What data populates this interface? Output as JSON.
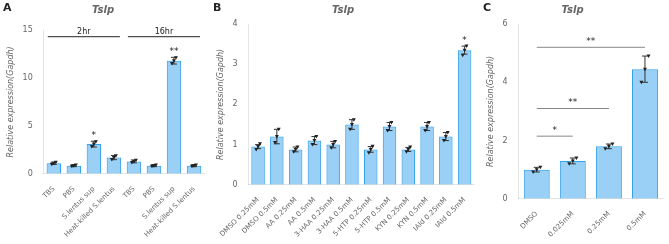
{
  "chart_data": [
    {
      "type": "bar",
      "title": "Tslp",
      "panel_label": "A",
      "categories": [
        "TBS",
        "PBS",
        "S.lentus sup",
        "Heat-killed S.lentus",
        "TBS",
        "PBS",
        "S.lentus sup",
        "Heat-killed S.lentus"
      ],
      "values": [
        1.1,
        0.85,
        3.1,
        1.7,
        1.3,
        0.85,
        11.8,
        0.85
      ],
      "errors": [
        0.12,
        0.1,
        0.3,
        0.22,
        0.15,
        0.1,
        0.35,
        0.1
      ],
      "dots": [
        [
          1.0,
          1.1,
          1.2
        ],
        [
          0.78,
          0.85,
          0.92
        ],
        [
          2.85,
          3.1,
          3.35
        ],
        [
          1.5,
          1.7,
          1.9
        ],
        [
          1.18,
          1.3,
          1.42
        ],
        [
          0.78,
          0.85,
          0.92
        ],
        [
          11.5,
          11.8,
          12.1
        ],
        [
          0.78,
          0.85,
          0.92
        ]
      ],
      "ylim": [
        0,
        15
      ],
      "yticks": [
        0,
        5,
        10,
        15
      ],
      "ylabel": "Relative expression(Gapdh)",
      "sig_labels": [
        null,
        null,
        "*",
        null,
        null,
        null,
        "**",
        null
      ],
      "groups": [
        {
          "label": "2hr",
          "start": 0,
          "end": 3,
          "y": 14.3
        },
        {
          "label": "16hr",
          "start": 4,
          "end": 7,
          "y": 14.3
        }
      ],
      "grid": false
    },
    {
      "type": "bar",
      "title": "Tslp",
      "panel_label": "B",
      "categories": [
        "DMSO 0.25mM",
        "DMSO 0.5mM",
        "AA 0.25mM",
        "AA 0.5mM",
        "3-HAA 0.25mM",
        "3-HAA 0.5mM",
        "5-HTP 0.25mM",
        "5-HTP 0.5mM",
        "KYN 0.25mM",
        "KYN 0.5mM",
        "IAId 0.25mM",
        "IAId 0.5mM"
      ],
      "values": [
        0.95,
        1.2,
        0.88,
        1.1,
        1.0,
        1.5,
        0.88,
        1.45,
        0.88,
        1.45,
        1.2,
        3.35
      ],
      "errors": [
        0.05,
        0.18,
        0.06,
        0.1,
        0.08,
        0.12,
        0.07,
        0.1,
        0.05,
        0.1,
        0.1,
        0.1
      ],
      "dots": [
        [
          0.88,
          0.95,
          1.02
        ],
        [
          1.05,
          1.2,
          1.38
        ],
        [
          0.82,
          0.88,
          0.94
        ],
        [
          1.0,
          1.1,
          1.2
        ],
        [
          0.92,
          1.0,
          1.08
        ],
        [
          1.38,
          1.5,
          1.62
        ],
        [
          0.8,
          0.88,
          0.96
        ],
        [
          1.35,
          1.45,
          1.55
        ],
        [
          0.82,
          0.88,
          0.94
        ],
        [
          1.35,
          1.45,
          1.55
        ],
        [
          1.1,
          1.2,
          1.3
        ],
        [
          3.22,
          3.35,
          3.45
        ]
      ],
      "ylim": [
        0,
        4
      ],
      "yticks": [
        0,
        1,
        2,
        3,
        4
      ],
      "ylabel": "Relative expression(Gapdh)",
      "sig_labels": [
        null,
        null,
        null,
        null,
        null,
        null,
        null,
        null,
        null,
        null,
        null,
        "*"
      ],
      "grid": false
    },
    {
      "type": "bar",
      "title": "Tslp",
      "panel_label": "C",
      "categories": [
        "DMSO",
        "0.025mM",
        "0.25mM",
        "0.5mM"
      ],
      "values": [
        1.0,
        1.3,
        1.8,
        4.45
      ],
      "errors": [
        0.08,
        0.1,
        0.08,
        0.45
      ],
      "dots": [
        [
          0.92,
          1.0,
          1.08
        ],
        [
          1.2,
          1.3,
          1.4
        ],
        [
          1.72,
          1.8,
          1.88
        ],
        [
          4.0,
          4.45,
          4.9
        ]
      ],
      "ylim": [
        0,
        6
      ],
      "yticks": [
        0,
        2,
        4,
        6
      ],
      "ylabel": "Relative expression(Gapdh)",
      "brackets": [
        {
          "from": 0,
          "to": 1,
          "y": 2.15,
          "label": "*"
        },
        {
          "from": 0,
          "to": 2,
          "y": 3.1,
          "label": "**"
        },
        {
          "from": 0,
          "to": 3,
          "y": 5.2,
          "label": "**"
        }
      ],
      "grid": false
    }
  ]
}
